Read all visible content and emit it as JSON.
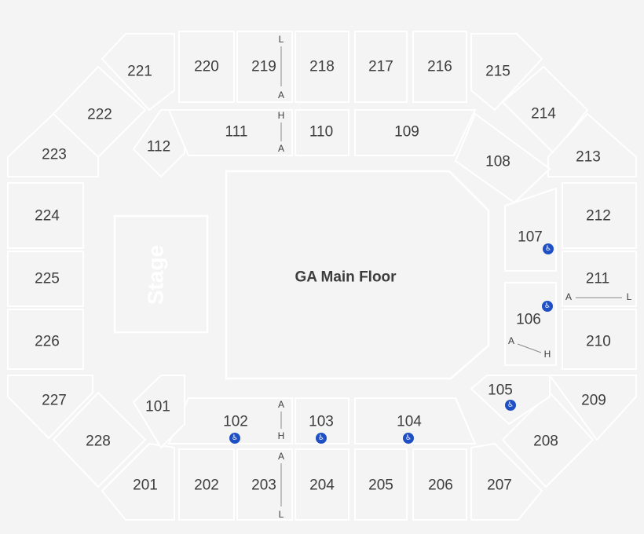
{
  "floor_label": "GA Main Floor",
  "stage_label": "Stage",
  "sections": {
    "s201": "201",
    "s202": "202",
    "s203": "203",
    "s204": "204",
    "s205": "205",
    "s206": "206",
    "s207": "207",
    "s208": "208",
    "s209": "209",
    "s210": "210",
    "s211": "211",
    "s212": "212",
    "s213": "213",
    "s214": "214",
    "s215": "215",
    "s216": "216",
    "s217": "217",
    "s218": "218",
    "s219": "219",
    "s220": "220",
    "s221": "221",
    "s222": "222",
    "s223": "223",
    "s224": "224",
    "s225": "225",
    "s226": "226",
    "s227": "227",
    "s228": "228",
    "s101": "101",
    "s102": "102",
    "s103": "103",
    "s104": "104",
    "s105": "105",
    "s106": "106",
    "s107": "107",
    "s108": "108",
    "s109": "109",
    "s110": "110",
    "s111": "111",
    "s112": "112"
  },
  "row_markers": {
    "r219_top": "L",
    "r219_bot": "A",
    "r111_top": "H",
    "r111_bot": "A",
    "r102_top": "A",
    "r102_bot": "H",
    "r203_top": "A",
    "r203_bot": "L",
    "r211_left": "A",
    "r211_right": "L",
    "r106_left": "A",
    "r106_right": "H"
  },
  "icons": {
    "accessible": "wheelchair-icon",
    "accessible_glyph": "♿"
  },
  "colors": {
    "background": "#f4f4f4",
    "section_border": "#ffffff",
    "label": "#3d3d3d",
    "accessible": "#1f4fc4"
  }
}
